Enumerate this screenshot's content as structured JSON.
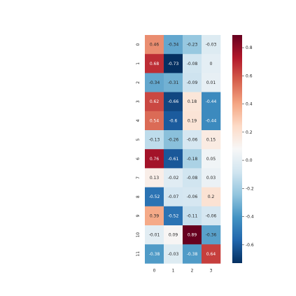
{
  "chart_data": {
    "type": "heatmap",
    "title": "",
    "xlabel": "",
    "ylabel": "",
    "columns": [
      "0",
      "1",
      "2",
      "3"
    ],
    "rows": [
      "0",
      "1",
      "2",
      "3",
      "4",
      "5",
      "6",
      "7",
      "8",
      "9",
      "10",
      "11"
    ],
    "values": [
      [
        0.46,
        -0.34,
        -0.23,
        -0.03
      ],
      [
        0.68,
        -0.73,
        -0.08,
        0
      ],
      [
        -0.34,
        -0.31,
        -0.09,
        0.01
      ],
      [
        0.62,
        -0.66,
        0.18,
        -0.44
      ],
      [
        0.54,
        -0.6,
        0.19,
        -0.44
      ],
      [
        -0.13,
        -0.26,
        -0.06,
        0.15
      ],
      [
        0.76,
        -0.61,
        -0.18,
        0.05
      ],
      [
        0.13,
        -0.02,
        -0.08,
        0.03
      ],
      [
        -0.52,
        -0.07,
        -0.06,
        0.2
      ],
      [
        0.39,
        -0.52,
        -0.11,
        -0.06
      ],
      [
        -0.01,
        0.09,
        0.89,
        -0.36
      ],
      [
        -0.38,
        -0.03,
        -0.38,
        0.64
      ]
    ],
    "labels": [
      [
        "0.46",
        "-0.34",
        "-0.23",
        "-0.03"
      ],
      [
        "0.68",
        "-0.73",
        "-0.08",
        "0"
      ],
      [
        "-0.34",
        "-0.31",
        "-0.09",
        "0.01"
      ],
      [
        "0.62",
        "-0.66",
        "0.18",
        "-0.44"
      ],
      [
        "0.54",
        "-0.6",
        "0.19",
        "-0.44"
      ],
      [
        "-0.13",
        "-0.26",
        "-0.06",
        "0.15"
      ],
      [
        "0.76",
        "-0.61",
        "-0.18",
        "0.05"
      ],
      [
        "0.13",
        "-0.02",
        "-0.08",
        "0.03"
      ],
      [
        "-0.52",
        "-0.07",
        "-0.06",
        "0.2"
      ],
      [
        "0.39",
        "-0.52",
        "-0.11",
        "-0.06"
      ],
      [
        "-0.01",
        "0.09",
        "0.89",
        "-0.36"
      ],
      [
        "-0.38",
        "-0.03",
        "-0.38",
        "0.64"
      ]
    ],
    "colormap": "RdBu_r",
    "vmin": -0.73,
    "vmax": 0.89,
    "colorbar_ticks": [
      "0.8",
      "0.6",
      "0.4",
      "0.2",
      "0.0",
      "-0.2",
      "-0.4",
      "-0.6"
    ],
    "colors": {
      "low": "#053061",
      "mid": "#f7f7f7",
      "high": "#67001f"
    }
  }
}
